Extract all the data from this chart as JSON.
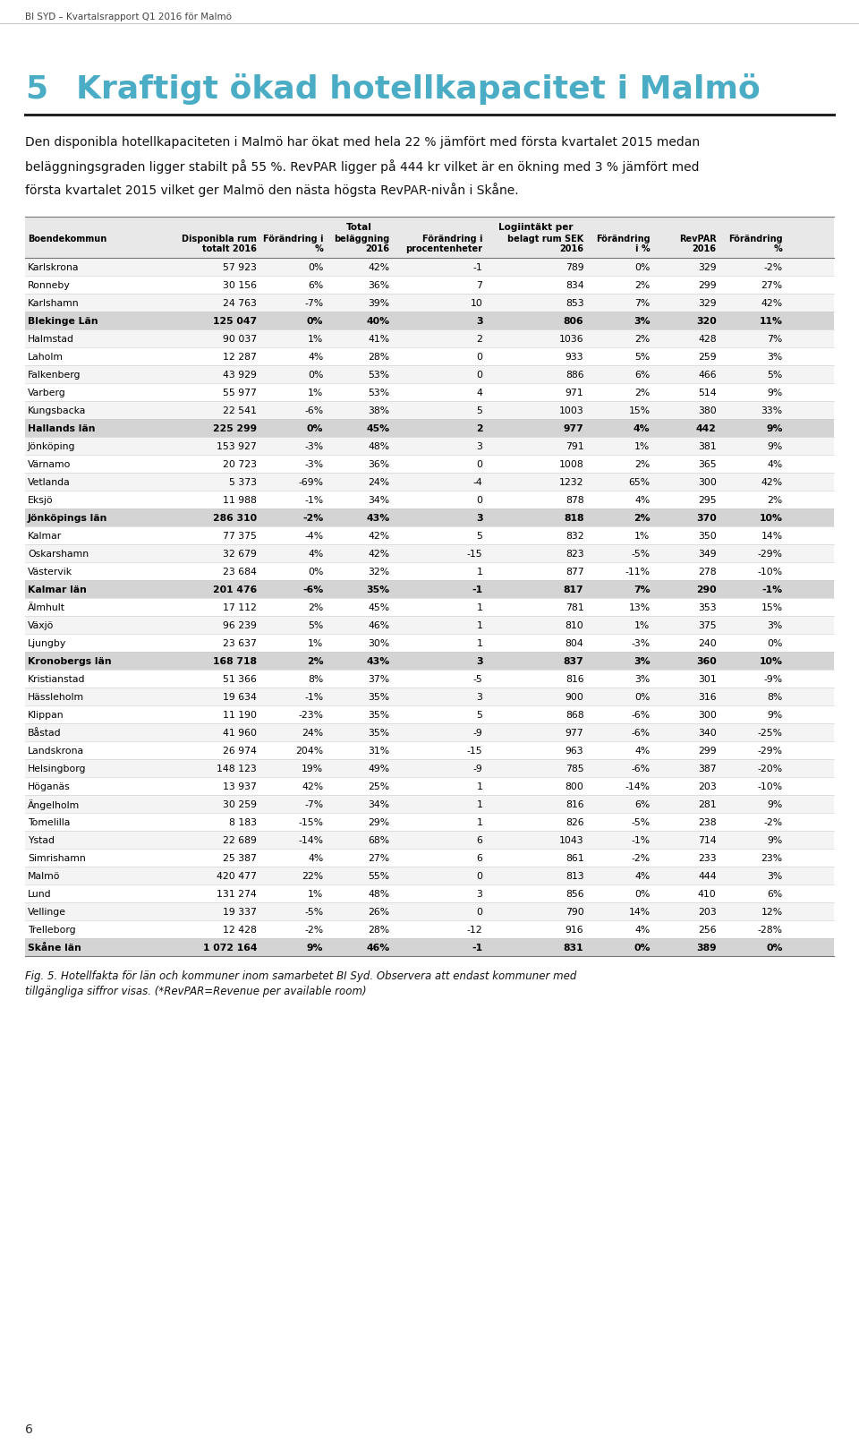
{
  "header_text": "BI SYD – Kvartalsrapport Q1 2016 för Malmö",
  "chapter_num": "5",
  "title": "Kraftigt ökad hotellkapacitet i Malmö",
  "body_line1": "Den disponibla hotellkapaciteten i Malmö har ökat med hela 22 % jämfört med första kvartalet 2015 medan",
  "body_line2": "beläggningsgraden ligger stabilt på 55 %. RevPAR ligger på 444 kr vilket är en ökning med 3 % jämfört med",
  "body_line3": "första kvartalet 2015 vilket ger Malmö den nästa högsta RevPAR-nivån i Skåne.",
  "caption_line1": "Fig. 5. Hotellfakta för län och kommuner inom samarbetet BI Syd. Observera att endast kommuner med",
  "caption_line2": "tillgängliga siffror visas. (*RevPAR=Revenue per available room)",
  "page_number": "6",
  "title_color": "#4bacc6",
  "rows": [
    [
      "Karlskrona",
      "57 923",
      "0%",
      "42%",
      "-1",
      "789",
      "0%",
      "329",
      "-2%",
      false
    ],
    [
      "Ronneby",
      "30 156",
      "6%",
      "36%",
      "7",
      "834",
      "2%",
      "299",
      "27%",
      false
    ],
    [
      "Karlshamn",
      "24 763",
      "-7%",
      "39%",
      "10",
      "853",
      "7%",
      "329",
      "42%",
      false
    ],
    [
      "Blekinge Län",
      "125 047",
      "0%",
      "40%",
      "3",
      "806",
      "3%",
      "320",
      "11%",
      true
    ],
    [
      "Halmstad",
      "90 037",
      "1%",
      "41%",
      "2",
      "1036",
      "2%",
      "428",
      "7%",
      false
    ],
    [
      "Laholm",
      "12 287",
      "4%",
      "28%",
      "0",
      "933",
      "5%",
      "259",
      "3%",
      false
    ],
    [
      "Falkenberg",
      "43 929",
      "0%",
      "53%",
      "0",
      "886",
      "6%",
      "466",
      "5%",
      false
    ],
    [
      "Varberg",
      "55 977",
      "1%",
      "53%",
      "4",
      "971",
      "2%",
      "514",
      "9%",
      false
    ],
    [
      "Kungsbacka",
      "22 541",
      "-6%",
      "38%",
      "5",
      "1003",
      "15%",
      "380",
      "33%",
      false
    ],
    [
      "Hallands län",
      "225 299",
      "0%",
      "45%",
      "2",
      "977",
      "4%",
      "442",
      "9%",
      true
    ],
    [
      "Jönköping",
      "153 927",
      "-3%",
      "48%",
      "3",
      "791",
      "1%",
      "381",
      "9%",
      false
    ],
    [
      "Värnamo",
      "20 723",
      "-3%",
      "36%",
      "0",
      "1008",
      "2%",
      "365",
      "4%",
      false
    ],
    [
      "Vetlanda",
      "5 373",
      "-69%",
      "24%",
      "-4",
      "1232",
      "65%",
      "300",
      "42%",
      false
    ],
    [
      "Eksjö",
      "11 988",
      "-1%",
      "34%",
      "0",
      "878",
      "4%",
      "295",
      "2%",
      false
    ],
    [
      "Jönköpings län",
      "286 310",
      "-2%",
      "43%",
      "3",
      "818",
      "2%",
      "370",
      "10%",
      true
    ],
    [
      "Kalmar",
      "77 375",
      "-4%",
      "42%",
      "5",
      "832",
      "1%",
      "350",
      "14%",
      false
    ],
    [
      "Oskarshamn",
      "32 679",
      "4%",
      "42%",
      "-15",
      "823",
      "-5%",
      "349",
      "-29%",
      false
    ],
    [
      "Västervik",
      "23 684",
      "0%",
      "32%",
      "1",
      "877",
      "-11%",
      "278",
      "-10%",
      false
    ],
    [
      "Kalmar län",
      "201 476",
      "-6%",
      "35%",
      "-1",
      "817",
      "7%",
      "290",
      "-1%",
      true
    ],
    [
      "Älmhult",
      "17 112",
      "2%",
      "45%",
      "1",
      "781",
      "13%",
      "353",
      "15%",
      false
    ],
    [
      "Växjö",
      "96 239",
      "5%",
      "46%",
      "1",
      "810",
      "1%",
      "375",
      "3%",
      false
    ],
    [
      "Ljungby",
      "23 637",
      "1%",
      "30%",
      "1",
      "804",
      "-3%",
      "240",
      "0%",
      false
    ],
    [
      "Kronobergs län",
      "168 718",
      "2%",
      "43%",
      "3",
      "837",
      "3%",
      "360",
      "10%",
      true
    ],
    [
      "Kristianstad",
      "51 366",
      "8%",
      "37%",
      "-5",
      "816",
      "3%",
      "301",
      "-9%",
      false
    ],
    [
      "Hässleholm",
      "19 634",
      "-1%",
      "35%",
      "3",
      "900",
      "0%",
      "316",
      "8%",
      false
    ],
    [
      "Klippan",
      "11 190",
      "-23%",
      "35%",
      "5",
      "868",
      "-6%",
      "300",
      "9%",
      false
    ],
    [
      "Båstad",
      "41 960",
      "24%",
      "35%",
      "-9",
      "977",
      "-6%",
      "340",
      "-25%",
      false
    ],
    [
      "Landskrona",
      "26 974",
      "204%",
      "31%",
      "-15",
      "963",
      "4%",
      "299",
      "-29%",
      false
    ],
    [
      "Helsingborg",
      "148 123",
      "19%",
      "49%",
      "-9",
      "785",
      "-6%",
      "387",
      "-20%",
      false
    ],
    [
      "Höganäs",
      "13 937",
      "42%",
      "25%",
      "1",
      "800",
      "-14%",
      "203",
      "-10%",
      false
    ],
    [
      "Ängelholm",
      "30 259",
      "-7%",
      "34%",
      "1",
      "816",
      "6%",
      "281",
      "9%",
      false
    ],
    [
      "Tomelilla",
      "8 183",
      "-15%",
      "29%",
      "1",
      "826",
      "-5%",
      "238",
      "-2%",
      false
    ],
    [
      "Ystad",
      "22 689",
      "-14%",
      "68%",
      "6",
      "1043",
      "-1%",
      "714",
      "9%",
      false
    ],
    [
      "Simrishamn",
      "25 387",
      "4%",
      "27%",
      "6",
      "861",
      "-2%",
      "233",
      "23%",
      false
    ],
    [
      "Malmö",
      "420 477",
      "22%",
      "55%",
      "0",
      "813",
      "4%",
      "444",
      "3%",
      false
    ],
    [
      "Lund",
      "131 274",
      "1%",
      "48%",
      "3",
      "856",
      "0%",
      "410",
      "6%",
      false
    ],
    [
      "Vellinge",
      "19 337",
      "-5%",
      "26%",
      "0",
      "790",
      "14%",
      "203",
      "12%",
      false
    ],
    [
      "Trelleborg",
      "12 428",
      "-2%",
      "28%",
      "-12",
      "916",
      "4%",
      "256",
      "-28%",
      false
    ],
    [
      "Skåne län",
      "1 072 164",
      "9%",
      "46%",
      "-1",
      "831",
      "0%",
      "389",
      "0%",
      true
    ]
  ]
}
